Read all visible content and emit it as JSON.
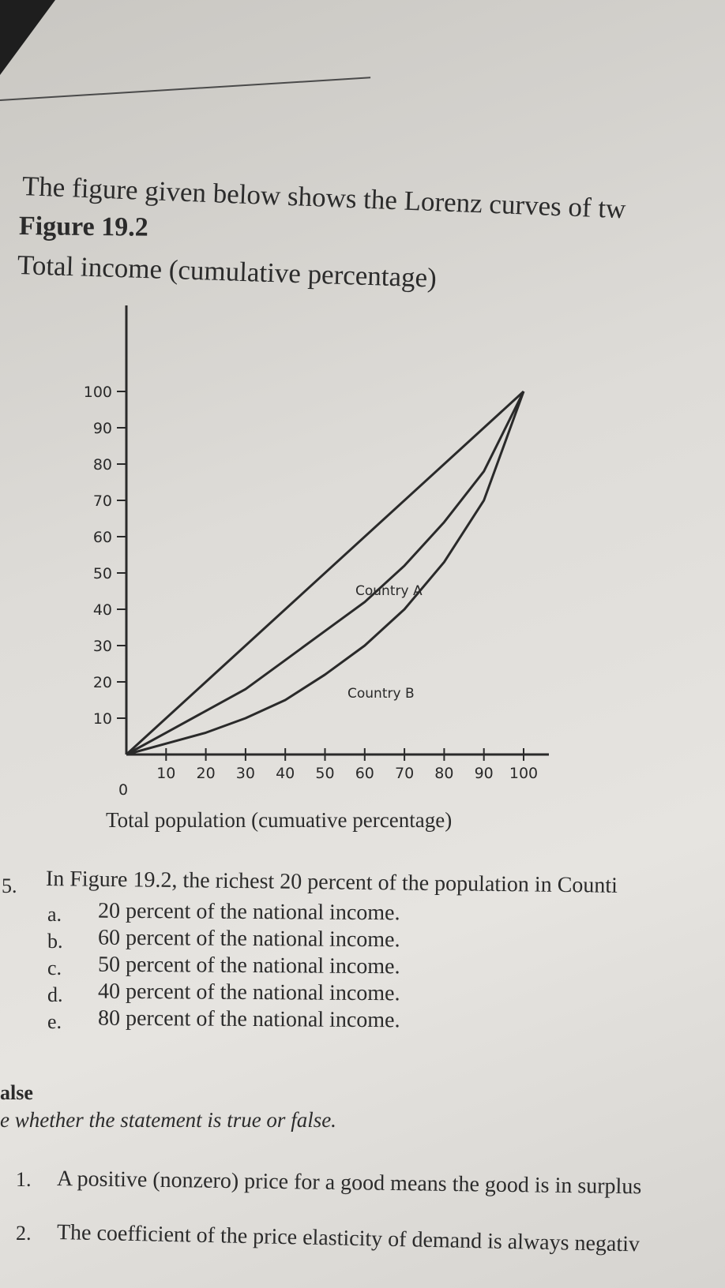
{
  "intro": "The figure given below shows the Lorenz curves of tw",
  "figure_title": "Figure 19.2",
  "question": {
    "number": "5.",
    "text": "In Figure 19.2, the richest 20 percent of the population in Counti",
    "options": [
      {
        "letter": "a.",
        "text": "20 percent of the national income."
      },
      {
        "letter": "b.",
        "text": "60 percent of the national income."
      },
      {
        "letter": "c.",
        "text": "50 percent of the national income."
      },
      {
        "letter": "d.",
        "text": "40 percent of the national income."
      },
      {
        "letter": "e.",
        "text": "80 percent of the national income."
      }
    ]
  },
  "section": {
    "title": "alse",
    "instruction": "e whether the statement is true or false.",
    "statements": [
      {
        "number": "1.",
        "text": "A positive (nonzero) price for a good means the good is in surplus"
      },
      {
        "number": "2.",
        "text": "The coefficient of the price elasticity of demand is always negativ"
      }
    ]
  },
  "chart_data": {
    "type": "line",
    "title": "",
    "ylabel": "Total income (cumulative percentage)",
    "xlabel": "Total population (cumuative percentage)",
    "origin_label": "0",
    "xlim": [
      0,
      100
    ],
    "ylim": [
      0,
      100
    ],
    "xticks": [
      10,
      20,
      30,
      40,
      50,
      60,
      70,
      80,
      90,
      100
    ],
    "yticks": [
      10,
      20,
      30,
      40,
      50,
      60,
      70,
      80,
      90,
      100
    ],
    "xtick_labels": [
      "10",
      "20",
      "30",
      "40",
      "50",
      "60",
      "70",
      "80",
      "90",
      "100"
    ],
    "ytick_labels": [
      "10",
      "20",
      "30",
      "40",
      "50",
      "60",
      "70",
      "80",
      "90",
      "100"
    ],
    "grid": false,
    "series": [
      {
        "values": [
          [
            0,
            0
          ],
          [
            100,
            100
          ]
        ]
      },
      {
        "name": "Country A",
        "values": [
          [
            0,
            0
          ],
          [
            10,
            6
          ],
          [
            20,
            12
          ],
          [
            30,
            18
          ],
          [
            40,
            26
          ],
          [
            50,
            34
          ],
          [
            60,
            42
          ],
          [
            70,
            52
          ],
          [
            80,
            64
          ],
          [
            90,
            78
          ],
          [
            100,
            100
          ]
        ]
      },
      {
        "name": "Country B",
        "values": [
          [
            0,
            0
          ],
          [
            10,
            3
          ],
          [
            20,
            6
          ],
          [
            30,
            10
          ],
          [
            40,
            15
          ],
          [
            50,
            22
          ],
          [
            60,
            30
          ],
          [
            70,
            40
          ],
          [
            80,
            53
          ],
          [
            90,
            70
          ],
          [
            100,
            100
          ]
        ]
      }
    ]
  }
}
